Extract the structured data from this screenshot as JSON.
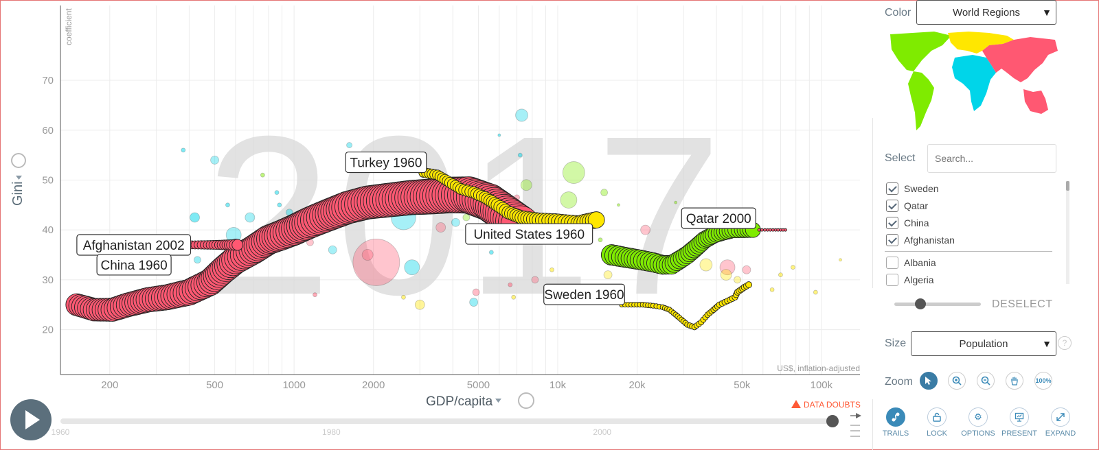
{
  "chart_data": {
    "type": "scatter",
    "year_watermark": "2017",
    "x_axis": {
      "label": "GDP/capita",
      "unit_note": "US$, inflation-adjusted",
      "scale": "log",
      "range": [
        130,
        140000
      ],
      "ticks": [
        {
          "v": 200,
          "t": "200"
        },
        {
          "v": 500,
          "t": "500"
        },
        {
          "v": 1000,
          "t": "1000"
        },
        {
          "v": 2000,
          "t": "2000"
        },
        {
          "v": 5000,
          "t": "5000"
        },
        {
          "v": 10000,
          "t": "10k"
        },
        {
          "v": 20000,
          "t": "20k"
        },
        {
          "v": 50000,
          "t": "50k"
        },
        {
          "v": 100000,
          "t": "100k"
        }
      ]
    },
    "y_axis": {
      "label": "Gini",
      "sublabel": "coefficient",
      "range": [
        11,
        85
      ],
      "ticks": [
        20,
        30,
        40,
        50,
        60,
        70
      ]
    },
    "data_doubts": "DATA DOUBTS",
    "colors": {
      "asia": "#ff5872",
      "europe": "#ffe700",
      "americas": "#7feb00",
      "africa": "#00d5e9"
    },
    "trails": [
      {
        "name": "China",
        "color": "#ff5872",
        "sizes": [
          16,
          28
        ],
        "points": [
          [
            150,
            25
          ],
          [
            175,
            24
          ],
          [
            205,
            24
          ],
          [
            235,
            25
          ],
          [
            280,
            26
          ],
          [
            330,
            26.5
          ],
          [
            400,
            27.5
          ],
          [
            480,
            29.5
          ],
          [
            540,
            32
          ],
          [
            600,
            34
          ],
          [
            700,
            36
          ],
          [
            800,
            38
          ],
          [
            900,
            39
          ],
          [
            1000,
            40
          ],
          [
            1150,
            41.5
          ],
          [
            1350,
            43
          ],
          [
            1600,
            44.5
          ],
          [
            1900,
            45.5
          ],
          [
            2300,
            46
          ],
          [
            2800,
            46.5
          ],
          [
            3300,
            46.7
          ],
          [
            3900,
            47
          ],
          [
            4600,
            47
          ],
          [
            5500,
            45.5
          ],
          [
            6400,
            43
          ],
          [
            7200,
            41
          ]
        ]
      },
      {
        "name": "Turkey",
        "color": "#ffe700",
        "sizes": [
          7,
          12
        ],
        "points": [
          [
            3100,
            51.5
          ],
          [
            3500,
            51
          ],
          [
            3900,
            49.5
          ],
          [
            4300,
            48.2
          ],
          [
            4800,
            47.5
          ],
          [
            5300,
            46.5
          ],
          [
            5900,
            45
          ],
          [
            6500,
            43.5
          ],
          [
            7300,
            42.5
          ],
          [
            8500,
            42
          ],
          [
            9800,
            41.8
          ],
          [
            11000,
            41.5
          ],
          [
            12000,
            41.3
          ],
          [
            13000,
            41.7
          ],
          [
            14000,
            42
          ]
        ]
      },
      {
        "name": "Sweden",
        "color": "#ffe700",
        "sizes": [
          3.5,
          4.5
        ],
        "points": [
          [
            17500,
            25
          ],
          [
            19000,
            25
          ],
          [
            21000,
            25
          ],
          [
            23000,
            24.8
          ],
          [
            25000,
            24.5
          ],
          [
            26500,
            24
          ],
          [
            28000,
            23
          ],
          [
            29500,
            22
          ],
          [
            31000,
            21
          ],
          [
            33000,
            20.5
          ],
          [
            35000,
            21.5
          ],
          [
            37000,
            23
          ],
          [
            39000,
            24
          ],
          [
            41000,
            25
          ],
          [
            43000,
            25.5
          ],
          [
            45000,
            26
          ],
          [
            47000,
            26.5
          ],
          [
            48000,
            27.5
          ],
          [
            49500,
            28
          ],
          [
            51000,
            28.5
          ],
          [
            53000,
            29
          ]
        ]
      },
      {
        "name": "Qatar",
        "color": "#7feb00",
        "sizes": [
          15,
          11
        ],
        "points": [
          [
            16000,
            35
          ],
          [
            18000,
            34.5
          ],
          [
            20500,
            34
          ],
          [
            23000,
            33.5
          ],
          [
            25000,
            33
          ],
          [
            27000,
            33
          ],
          [
            29000,
            34
          ],
          [
            31000,
            35
          ],
          [
            33500,
            36.5
          ],
          [
            36000,
            38
          ],
          [
            39000,
            39
          ],
          [
            42000,
            39.5
          ],
          [
            46000,
            40
          ],
          [
            50000,
            40
          ],
          [
            55000,
            40
          ]
        ]
      },
      {
        "name": "Afghanistan",
        "color": "#ff5872",
        "sizes": [
          5,
          8
        ],
        "points": [
          [
            340,
            37
          ],
          [
            370,
            37
          ],
          [
            410,
            37
          ],
          [
            470,
            37
          ],
          [
            520,
            37
          ],
          [
            545,
            37
          ],
          [
            580,
            37
          ],
          [
            610,
            37
          ]
        ]
      },
      {
        "name": "Qatar-tail",
        "color": "#ff5872",
        "sizes": [
          2,
          2
        ],
        "points": [
          [
            58000,
            40
          ],
          [
            61000,
            40
          ],
          [
            64000,
            40
          ],
          [
            67000,
            40
          ],
          [
            70000,
            40
          ],
          [
            73000,
            40
          ]
        ]
      }
    ],
    "bubbles": [
      {
        "x": 600,
        "y": 37,
        "r": 9,
        "c": "#ff5872",
        "o": 1
      },
      {
        "x": 2050,
        "y": 33.5,
        "r": 34,
        "c": "#ff5872",
        "o": 0.35
      },
      {
        "x": 2600,
        "y": 42.5,
        "r": 18,
        "c": "#00d5e9",
        "o": 0.35
      },
      {
        "x": 7300,
        "y": 63,
        "r": 9,
        "c": "#00d5e9",
        "o": 0.35
      },
      {
        "x": 11500,
        "y": 51.5,
        "r": 16,
        "c": "#7feb00",
        "o": 0.35
      },
      {
        "x": 11000,
        "y": 46,
        "r": 12,
        "c": "#7feb00",
        "o": 0.35
      },
      {
        "x": 2800,
        "y": 32.5,
        "r": 11,
        "c": "#00d5e9",
        "o": 0.4
      },
      {
        "x": 590,
        "y": 39,
        "r": 11,
        "c": "#00d5e9",
        "o": 0.35
      },
      {
        "x": 500,
        "y": 54,
        "r": 6,
        "c": "#00d5e9",
        "o": 0.35
      },
      {
        "x": 1620,
        "y": 57,
        "r": 4,
        "c": "#00d5e9",
        "o": 0.4
      },
      {
        "x": 3000,
        "y": 25,
        "r": 7,
        "c": "#ffe700",
        "o": 0.4
      },
      {
        "x": 4900,
        "y": 27.5,
        "r": 5,
        "c": "#ff5872",
        "o": 0.4
      },
      {
        "x": 4800,
        "y": 25.5,
        "r": 6,
        "c": "#00d5e9",
        "o": 0.4
      },
      {
        "x": 1900,
        "y": 35,
        "r": 8,
        "c": "#ff5872",
        "o": 0.35
      },
      {
        "x": 21500,
        "y": 40,
        "r": 7,
        "c": "#ff5872",
        "o": 0.35
      },
      {
        "x": 44000,
        "y": 32.5,
        "r": 11,
        "c": "#ff5872",
        "o": 0.35
      },
      {
        "x": 43500,
        "y": 31,
        "r": 8,
        "c": "#ffe700",
        "o": 0.35
      },
      {
        "x": 36500,
        "y": 33,
        "r": 9,
        "c": "#ffe700",
        "o": 0.35
      },
      {
        "x": 52000,
        "y": 32,
        "r": 6,
        "c": "#ff5872",
        "o": 0.35
      },
      {
        "x": 48000,
        "y": 30,
        "r": 5,
        "c": "#ffe700",
        "o": 0.35
      },
      {
        "x": 15500,
        "y": 31,
        "r": 6,
        "c": "#ffe700",
        "o": 0.35
      },
      {
        "x": 8200,
        "y": 30,
        "r": 5,
        "c": "#ff5872",
        "o": 0.35
      },
      {
        "x": 7600,
        "y": 49,
        "r": 8,
        "c": "#7feb00",
        "o": 0.35
      },
      {
        "x": 15000,
        "y": 47.5,
        "r": 5,
        "c": "#7feb00",
        "o": 0.4
      },
      {
        "x": 12300,
        "y": 41,
        "r": 6,
        "c": "#7feb00",
        "o": 0.4
      },
      {
        "x": 420,
        "y": 42.5,
        "r": 7,
        "c": "#00d5e9",
        "o": 0.5
      },
      {
        "x": 430,
        "y": 34,
        "r": 5,
        "c": "#00d5e9",
        "o": 0.4
      },
      {
        "x": 960,
        "y": 43.5,
        "r": 5,
        "c": "#00d5e9",
        "o": 0.4
      },
      {
        "x": 680,
        "y": 42.5,
        "r": 7,
        "c": "#00d5e9",
        "o": 0.35
      },
      {
        "x": 770,
        "y": 39,
        "r": 9,
        "c": "#00d5e9",
        "o": 0.35
      },
      {
        "x": 4100,
        "y": 41.5,
        "r": 6,
        "c": "#00d5e9",
        "o": 0.35
      },
      {
        "x": 3600,
        "y": 40.5,
        "r": 7,
        "c": "#ff5872",
        "o": 0.35
      },
      {
        "x": 4500,
        "y": 42.5,
        "r": 5,
        "c": "#7feb00",
        "o": 0.35
      },
      {
        "x": 7000,
        "y": 46.5,
        "r": 4,
        "c": "#ff5872",
        "o": 0.4
      },
      {
        "x": 1400,
        "y": 36,
        "r": 6,
        "c": "#00d5e9",
        "o": 0.35
      },
      {
        "x": 1150,
        "y": 37.5,
        "r": 5,
        "c": "#ff5872",
        "o": 0.35
      },
      {
        "x": 380,
        "y": 56,
        "r": 3,
        "c": "#00d5e9",
        "o": 0.5
      },
      {
        "x": 560,
        "y": 45,
        "r": 3,
        "c": "#00d5e9",
        "o": 0.5
      },
      {
        "x": 860,
        "y": 47.5,
        "r": 3,
        "c": "#00d5e9",
        "o": 0.5
      },
      {
        "x": 760,
        "y": 51,
        "r": 3,
        "c": "#7feb00",
        "o": 0.5
      },
      {
        "x": 880,
        "y": 45,
        "r": 3,
        "c": "#00d5e9",
        "o": 0.5
      },
      {
        "x": 1200,
        "y": 27,
        "r": 3,
        "c": "#ff5872",
        "o": 0.5
      },
      {
        "x": 2600,
        "y": 26.5,
        "r": 3,
        "c": "#ffe700",
        "o": 0.5
      },
      {
        "x": 6800,
        "y": 26.5,
        "r": 3,
        "c": "#ffe700",
        "o": 0.5
      },
      {
        "x": 9500,
        "y": 32,
        "r": 3,
        "c": "#ffe700",
        "o": 0.5
      },
      {
        "x": 14500,
        "y": 38,
        "r": 3,
        "c": "#7feb00",
        "o": 0.5
      },
      {
        "x": 65000,
        "y": 28,
        "r": 3,
        "c": "#ffe700",
        "o": 0.5
      },
      {
        "x": 70000,
        "y": 31,
        "r": 3,
        "c": "#ffe700",
        "o": 0.5
      },
      {
        "x": 78000,
        "y": 32.5,
        "r": 3,
        "c": "#ffe700",
        "o": 0.5
      },
      {
        "x": 95000,
        "y": 27.5,
        "r": 3,
        "c": "#ffe700",
        "o": 0.5
      },
      {
        "x": 118000,
        "y": 34,
        "r": 2,
        "c": "#ffe700",
        "o": 0.5
      },
      {
        "x": 5600,
        "y": 35.5,
        "r": 3,
        "c": "#00d5e9",
        "o": 0.5
      },
      {
        "x": 6600,
        "y": 29,
        "r": 3,
        "c": "#ff5872",
        "o": 0.5
      },
      {
        "x": 17000,
        "y": 45,
        "r": 2,
        "c": "#7feb00",
        "o": 0.5
      },
      {
        "x": 28000,
        "y": 45.5,
        "r": 2,
        "c": "#7feb00",
        "o": 0.5
      },
      {
        "x": 7200,
        "y": 55,
        "r": 3,
        "c": "#00d5e9",
        "o": 0.5
      },
      {
        "x": 1630,
        "y": 42.5,
        "r": 3,
        "c": "#00d5e9",
        "o": 0.5
      },
      {
        "x": 6000,
        "y": 59,
        "r": 2,
        "c": "#00d5e9",
        "o": 0.5
      }
    ],
    "annotations": [
      {
        "text": "Afghanistan 2002",
        "x": 410,
        "y": 37,
        "anchor": "left"
      },
      {
        "text": "China 1960",
        "x": 230,
        "y": 26,
        "anchor": "up"
      },
      {
        "text": "Turkey 1960",
        "x": 3100,
        "y": 51.5,
        "anchor": "tl"
      },
      {
        "text": "United States 1960",
        "x": 9800,
        "y": 41.8,
        "anchor": "bl"
      },
      {
        "text": "Sweden 1960",
        "x": 17500,
        "y": 25,
        "anchor": "tl"
      },
      {
        "text": "Qatar 2000",
        "x": 55000,
        "y": 40,
        "anchor": "tr"
      }
    ],
    "timeline": {
      "ticks": [
        "1960",
        "1980",
        "2000"
      ],
      "range": [
        1960,
        2017
      ],
      "current": 2017
    }
  },
  "panel": {
    "color_label": "Color",
    "color_value": "World Regions",
    "select_label": "Select",
    "search_placeholder": "Search...",
    "checked": [
      "Sweden",
      "Qatar",
      "China",
      "Afghanistan"
    ],
    "unchecked": [
      "Albania",
      "Algeria"
    ],
    "deselect": "DESELECT",
    "size_label": "Size",
    "size_value": "Population",
    "zoom_label": "Zoom",
    "zoom_fit": "100%",
    "tools": [
      "TRAILS",
      "LOCK",
      "OPTIONS",
      "PRESENT",
      "EXPAND"
    ],
    "map_colors": [
      "#7feb00",
      "#ffe700",
      "#00d5e9",
      "#ff5872"
    ]
  }
}
